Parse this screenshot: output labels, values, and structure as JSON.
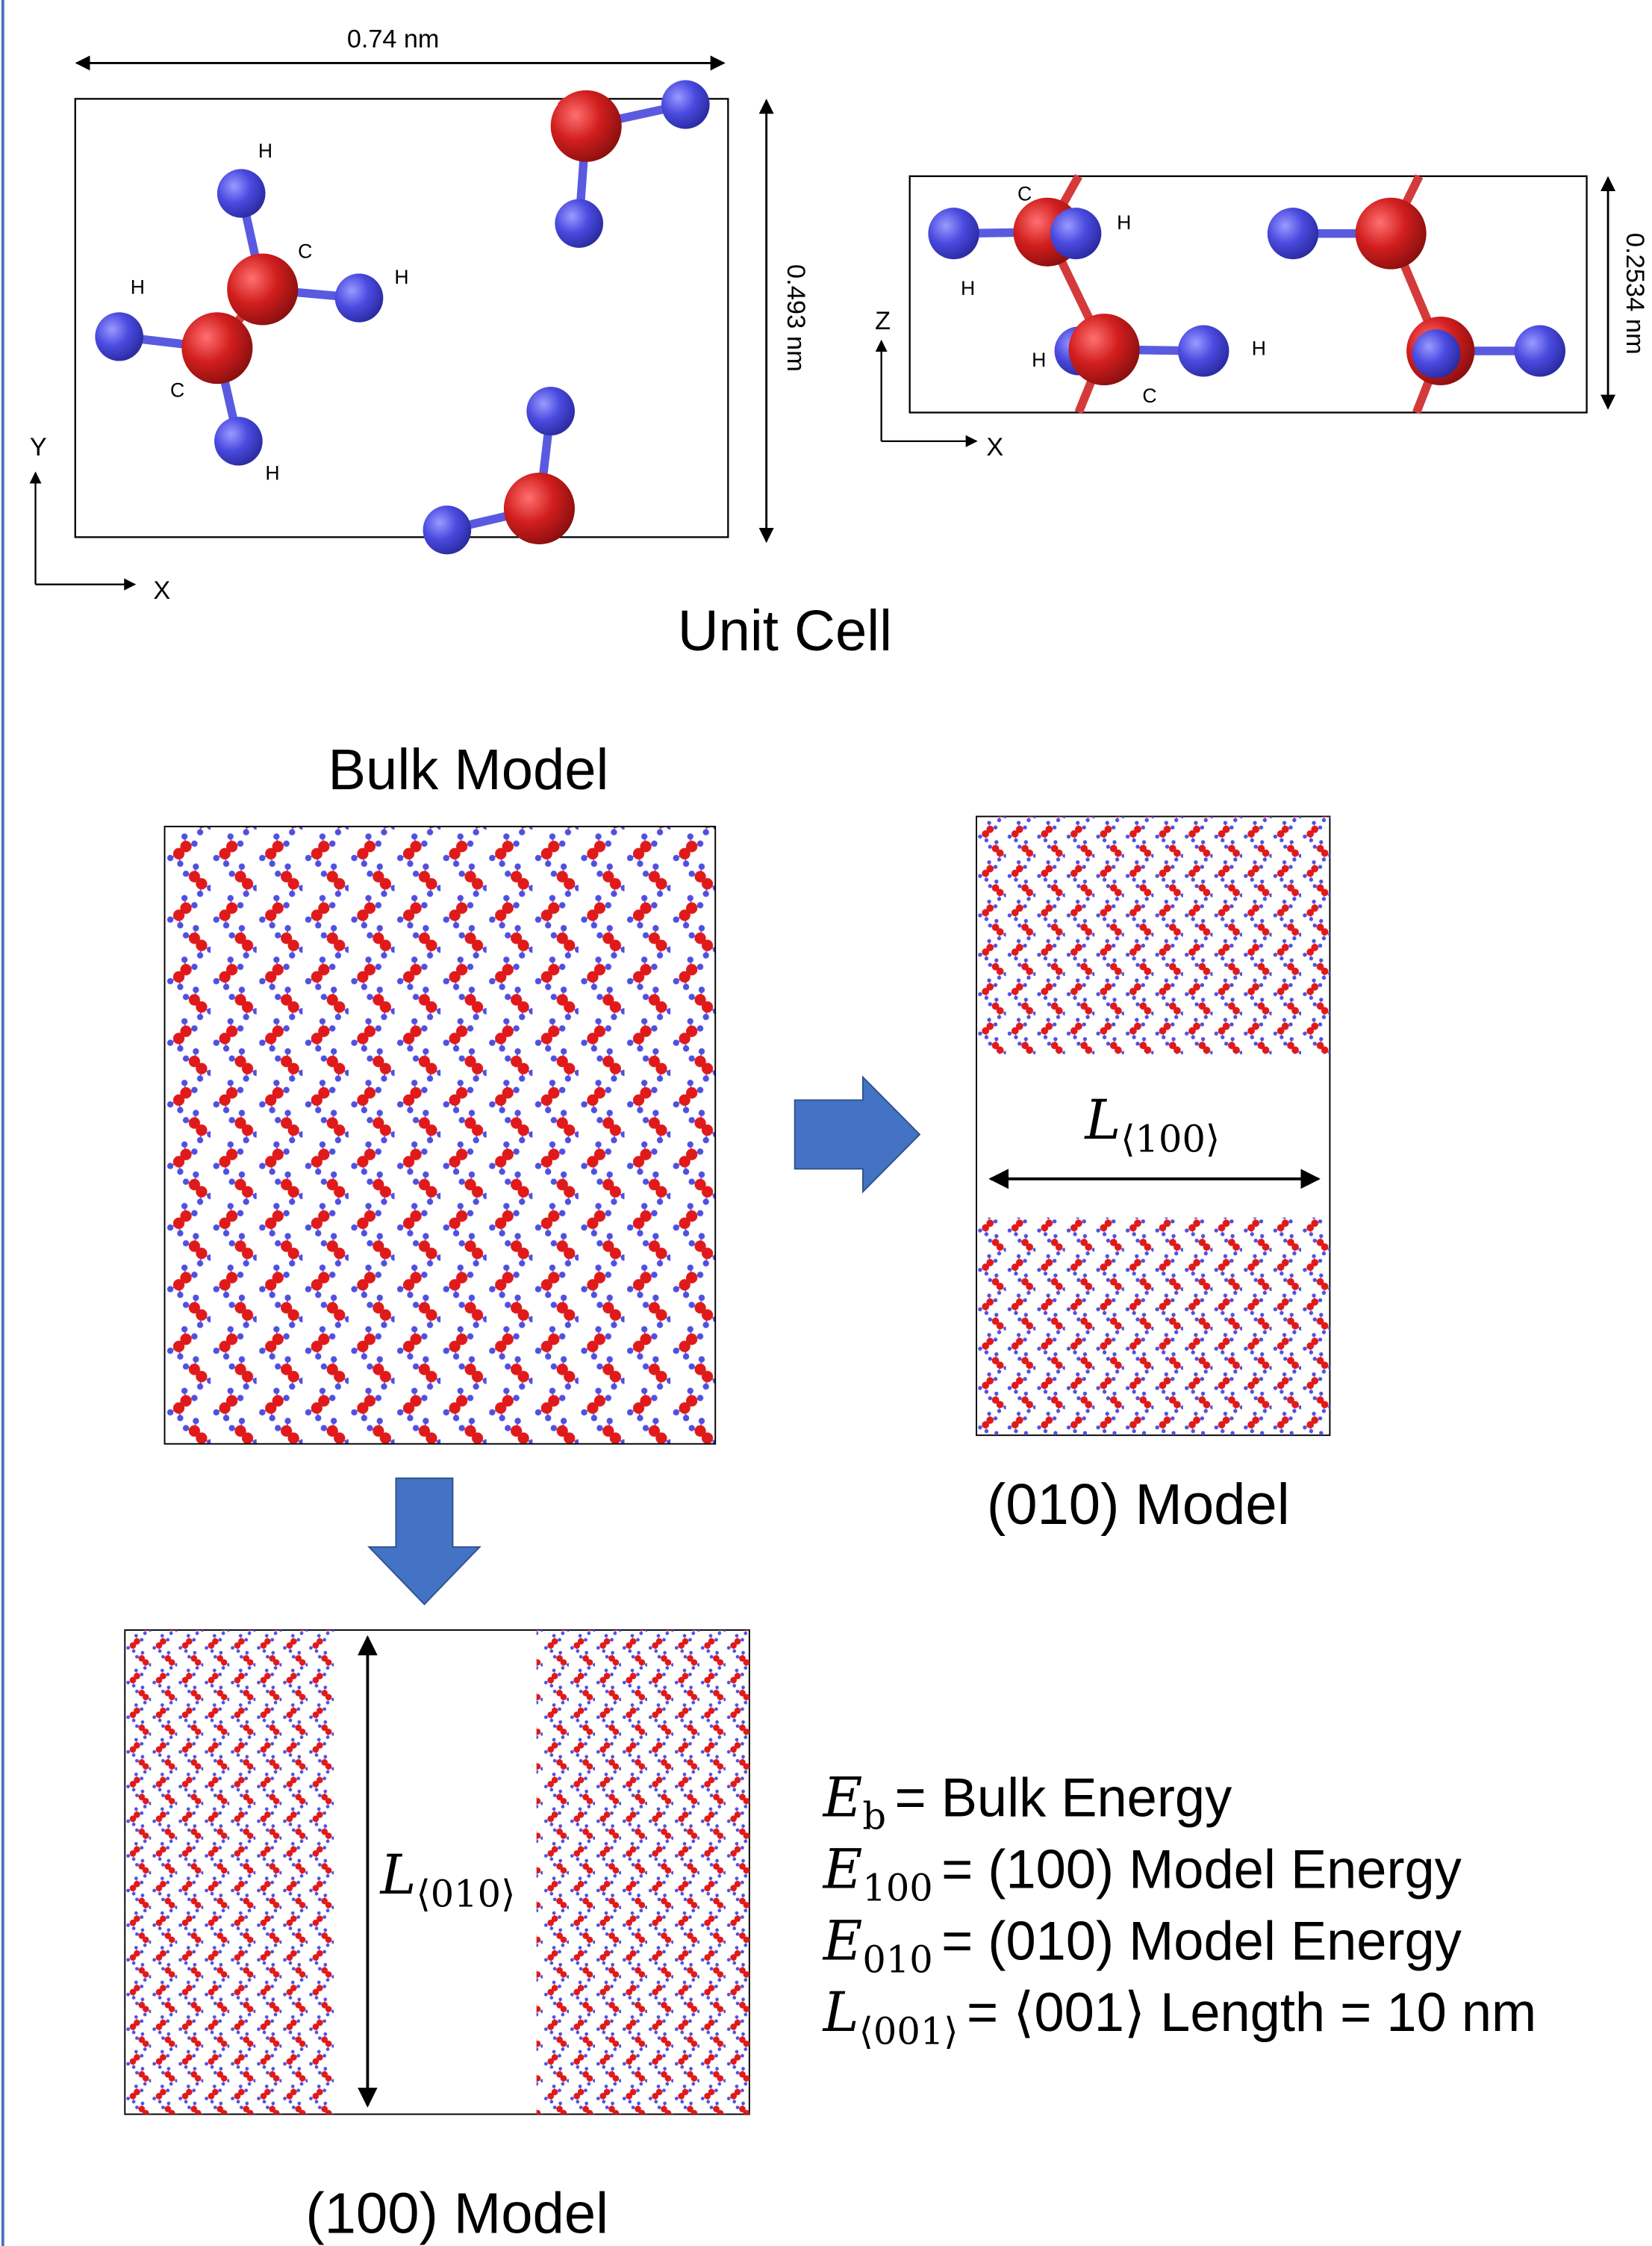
{
  "unit_cell": {
    "title": "Unit Cell",
    "top_view": {
      "width_label": "0.74 nm",
      "height_label": "0.493 nm",
      "axes": [
        "X",
        "Y"
      ],
      "atom_labels": [
        "H",
        "C",
        "H",
        "H",
        "C",
        "H"
      ]
    },
    "side_view": {
      "height_label": "0.2534 nm",
      "axes": [
        "X",
        "Z"
      ],
      "atom_labels": [
        "C",
        "H",
        "H",
        "H",
        "C",
        "H"
      ]
    }
  },
  "bulk_model": {
    "title": "Bulk Model"
  },
  "model_010": {
    "title": "(010) Model",
    "gap": {
      "symbol": "L",
      "subscript": "⟨100⟩"
    }
  },
  "model_100": {
    "title": "(100) Model",
    "gap": {
      "symbol": "L",
      "subscript": "⟨010⟩"
    }
  },
  "equations": [
    {
      "symbol": "E",
      "subscript": "b",
      "text": "= Bulk Energy"
    },
    {
      "symbol": "E",
      "subscript": "100",
      "text": "= (100) Model Energy"
    },
    {
      "symbol": "E",
      "subscript": "010",
      "text": "= (010) Model Energy"
    },
    {
      "symbol": "L",
      "subscript": "⟨001⟩",
      "text": "= ⟨001⟩ Length = 10 nm"
    }
  ]
}
